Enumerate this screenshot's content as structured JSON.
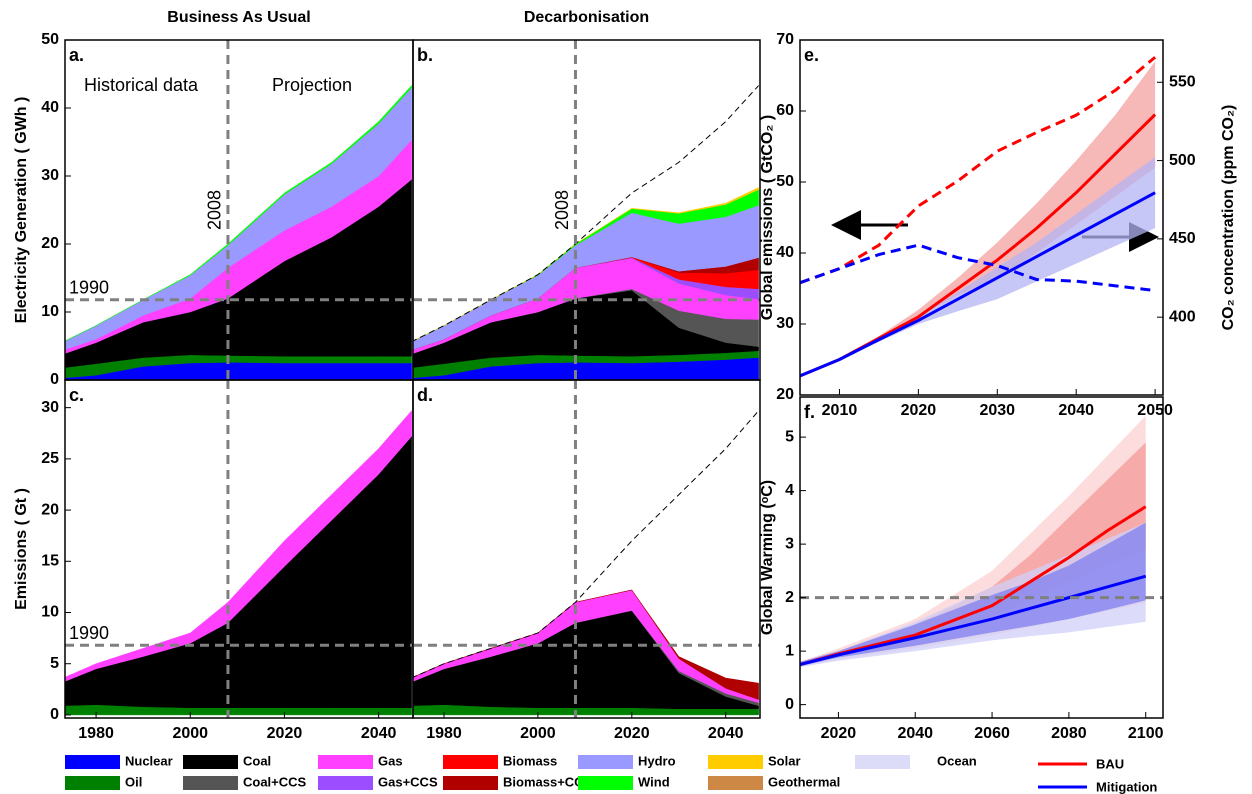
{
  "chart_data": [
    {
      "type": "area",
      "panel_label": "a.",
      "column_title": "Business As Usual",
      "ylabel": "Electricity Generation ( GWh )",
      "annotations": [
        "Historical data",
        "Projection"
      ],
      "x": [
        1973,
        1980,
        1990,
        2000,
        2008,
        2020,
        2030,
        2040,
        2047
      ],
      "xlim": [
        1973.4,
        2047.3
      ],
      "ylim": [
        0,
        50
      ],
      "yticks": [
        0,
        10,
        20,
        30,
        40,
        50
      ],
      "vline": 2008,
      "vline_label": true,
      "hline": {
        "value": 11.8,
        "label": "1990"
      },
      "series": [
        {
          "name": "Nuclear",
          "color": "#0000ff",
          "values": [
            0.3,
            0.7,
            2.0,
            2.5,
            2.6,
            2.5,
            2.5,
            2.5,
            2.5
          ]
        },
        {
          "name": "Oil",
          "color": "#008000",
          "values": [
            1.5,
            1.7,
            1.3,
            1.2,
            1.0,
            1.0,
            1.0,
            1.0,
            1.0
          ]
        },
        {
          "name": "Coal",
          "color": "#000000",
          "values": [
            2.0,
            3.1,
            5.2,
            6.3,
            8.4,
            14.0,
            17.5,
            22.0,
            26.0
          ]
        },
        {
          "name": "Gas",
          "color": "#ff40ff",
          "values": [
            0.6,
            0.5,
            1.0,
            2.0,
            4.5,
            4.5,
            4.5,
            4.5,
            5.8
          ]
        },
        {
          "name": "Hydro",
          "color": "#9999ff",
          "values": [
            1.2,
            2.0,
            2.3,
            3.4,
            3.3,
            5.3,
            6.3,
            7.7,
            7.7
          ]
        },
        {
          "name": "Wind",
          "color": "#00ff00",
          "values": [
            0,
            0,
            0,
            0.1,
            0.2,
            0.2,
            0.2,
            0.3,
            0.3
          ]
        }
      ]
    },
    {
      "type": "area",
      "panel_label": "b.",
      "column_title": "Decarbonisation",
      "x": [
        1973,
        1980,
        1990,
        2000,
        2008,
        2020,
        2030,
        2040,
        2047
      ],
      "xlim": [
        1973.4,
        2047.3
      ],
      "ylim": [
        0,
        50
      ],
      "vline": 2008,
      "vline_label": true,
      "hline": 11.8,
      "reference_line": [
        5.6,
        8.0,
        11.8,
        15.5,
        20.0,
        27.5,
        32.0,
        38.0,
        43.3
      ],
      "series": [
        {
          "name": "Nuclear",
          "color": "#0000ff",
          "values": [
            0.3,
            0.7,
            2.0,
            2.5,
            2.6,
            2.5,
            2.7,
            3.0,
            3.3
          ]
        },
        {
          "name": "Oil",
          "color": "#008000",
          "values": [
            1.5,
            1.7,
            1.3,
            1.2,
            1.0,
            1.0,
            1.0,
            1.0,
            1.0
          ]
        },
        {
          "name": "Coal",
          "color": "#000000",
          "values": [
            2.0,
            3.1,
            5.2,
            6.3,
            8.4,
            9.7,
            4.0,
            1.5,
            0.6
          ]
        },
        {
          "name": "Coal+CCS",
          "color": "#555555",
          "values": [
            0,
            0,
            0,
            0,
            0,
            0.2,
            2.5,
            3.5,
            4.0
          ]
        },
        {
          "name": "Gas",
          "color": "#ff40ff",
          "values": [
            0.6,
            0.5,
            1.0,
            2.0,
            4.5,
            4.5,
            4.0,
            3.5,
            3.0
          ]
        },
        {
          "name": "Gas+CCS",
          "color": "#9b4dff",
          "values": [
            0,
            0,
            0,
            0,
            0,
            0.1,
            0.6,
            1.2,
            1.5
          ]
        },
        {
          "name": "Biomass",
          "color": "#ff0000",
          "values": [
            0,
            0,
            0,
            0,
            0,
            0.1,
            1.0,
            2.0,
            2.8
          ]
        },
        {
          "name": "Biomass+CCS",
          "color": "#b00000",
          "values": [
            0,
            0,
            0,
            0,
            0,
            0,
            0.2,
            1.0,
            1.8
          ]
        },
        {
          "name": "Hydro",
          "color": "#9999ff",
          "values": [
            1.2,
            2.0,
            2.3,
            3.4,
            3.3,
            6.5,
            7.0,
            7.3,
            7.7
          ]
        },
        {
          "name": "Wind",
          "color": "#00ff00",
          "values": [
            0,
            0,
            0,
            0.1,
            0.2,
            0.6,
            1.5,
            1.8,
            2.3
          ]
        },
        {
          "name": "Solar",
          "color": "#ffcc00",
          "values": [
            0,
            0,
            0,
            0,
            0,
            0.05,
            0.1,
            0.2,
            0.3
          ]
        }
      ]
    },
    {
      "type": "area",
      "panel_label": "c.",
      "ylabel": "Emissions ( Gt )",
      "x": [
        1973,
        1980,
        1990,
        2000,
        2008,
        2020,
        2030,
        2040,
        2047
      ],
      "xlim": [
        1973.4,
        2047.3
      ],
      "xticks": [
        1980,
        2000,
        2020,
        2040
      ],
      "ylim": [
        -0.3,
        32.7
      ],
      "yticks": [
        0,
        5,
        10,
        15,
        20,
        25,
        30
      ],
      "vline": 2008,
      "hline": {
        "value": 6.8,
        "label": "1990"
      },
      "series": [
        {
          "name": "Oil",
          "color": "#008000",
          "values": [
            0.9,
            1.0,
            0.8,
            0.7,
            0.7,
            0.7,
            0.7,
            0.7,
            0.7
          ]
        },
        {
          "name": "Coal",
          "color": "#000000",
          "values": [
            2.3,
            3.5,
            4.9,
            6.3,
            8.3,
            13.8,
            18.3,
            22.8,
            26.5
          ]
        },
        {
          "name": "Gas",
          "color": "#ff40ff",
          "values": [
            0.4,
            0.5,
            0.8,
            1.0,
            2.0,
            2.5,
            2.5,
            2.5,
            2.5
          ]
        }
      ]
    },
    {
      "type": "area",
      "panel_label": "d.",
      "x": [
        1973,
        1980,
        1990,
        2000,
        2008,
        2020,
        2030,
        2040,
        2047
      ],
      "xlim": [
        1973.4,
        2047.3
      ],
      "xticks": [
        1980,
        2000,
        2020,
        2040
      ],
      "ylim": [
        -0.3,
        32.7
      ],
      "vline": 2008,
      "hline": 6.8,
      "reference_line": [
        3.6,
        5.0,
        6.5,
        8.0,
        11.0,
        17.0,
        21.5,
        26.0,
        29.7
      ],
      "series": [
        {
          "name": "Oil",
          "color": "#008000",
          "values": [
            0.9,
            1.0,
            0.8,
            0.7,
            0.7,
            0.7,
            0.6,
            0.6,
            0.6
          ]
        },
        {
          "name": "Coal",
          "color": "#000000",
          "values": [
            2.3,
            3.5,
            4.9,
            6.3,
            8.3,
            9.5,
            3.5,
            1.2,
            0.3
          ]
        },
        {
          "name": "Coal+CCS",
          "color": "#555555",
          "values": [
            0,
            0,
            0,
            0,
            0,
            0,
            0.2,
            0.3,
            0.3
          ]
        },
        {
          "name": "Gas",
          "color": "#ff40ff",
          "values": [
            0.4,
            0.5,
            0.8,
            1.0,
            2.0,
            2.0,
            1.2,
            0.5,
            0.3
          ]
        },
        {
          "name": "Biomass+CCS",
          "color": "#b00000",
          "values": [
            0,
            0,
            0,
            0,
            0,
            0,
            0.2,
            1.0,
            1.6
          ]
        }
      ]
    },
    {
      "type": "line",
      "panel_label": "e.",
      "ylabel": "Global emissions ( GtCO₂ )",
      "y2label": "CO₂ concentration (ppm CO₂)",
      "x": [
        2005,
        2010,
        2015,
        2020,
        2025,
        2030,
        2035,
        2040,
        2045,
        2050
      ],
      "xlim": [
        2005,
        2051
      ],
      "xticks": [
        2010,
        2020,
        2030,
        2040,
        2050
      ],
      "ylim": [
        20,
        70
      ],
      "yticks": [
        20,
        30,
        40,
        50,
        60,
        70
      ],
      "y2lim": [
        350.3,
        577
      ],
      "y2ticks": [
        400,
        450,
        500,
        550
      ],
      "bands": [
        {
          "color": "#f4a0a0",
          "lower": [
            22.7,
            25,
            27.8,
            31,
            34,
            36.5,
            40,
            44,
            48,
            52
          ],
          "upper": [
            22.7,
            25,
            28.3,
            32,
            36.5,
            41.5,
            47,
            53,
            59.5,
            67
          ]
        },
        {
          "color": "#b4b4f4",
          "lower": [
            22.7,
            25,
            27.5,
            30,
            31.8,
            33.5,
            36,
            38.5,
            41,
            43.5
          ],
          "upper": [
            22.7,
            25,
            28,
            31,
            34.5,
            38,
            41.5,
            45.5,
            49.5,
            53.5
          ]
        }
      ],
      "series": [
        {
          "color": "#ff0000",
          "values": [
            22.7,
            25,
            28,
            31,
            35,
            39,
            43.5,
            48.5,
            54,
            59.5
          ]
        },
        {
          "color": "#0000ff",
          "values": [
            22.7,
            25,
            27.8,
            30.5,
            33.5,
            36.5,
            39.5,
            42.5,
            45.5,
            48.5
          ]
        },
        {
          "color": "#ff0000",
          "axis": "y2",
          "dashed": true,
          "values": [
            422,
            431,
            446,
            471,
            487,
            506,
            518,
            529,
            545,
            566
          ]
        },
        {
          "color": "#0000ff",
          "axis": "y2",
          "dashed": true,
          "values": [
            422,
            431,
            440,
            446,
            438,
            433,
            424,
            423,
            420,
            417
          ]
        }
      ]
    },
    {
      "type": "line",
      "panel_label": "f.",
      "ylabel": "Global Warming (ᵒC)",
      "x": [
        2010,
        2020,
        2040,
        2060,
        2070,
        2080,
        2090,
        2100
      ],
      "xlim": [
        2010,
        2104.5
      ],
      "xticks": [
        2020,
        2040,
        2060,
        2080,
        2100
      ],
      "ylim": [
        -0.25,
        5.75
      ],
      "yticks": [
        0,
        1,
        2,
        3,
        4,
        5
      ],
      "hline": 2,
      "bands": [
        {
          "color": "#fbd0d0",
          "lower": [
            0.7,
            0.85,
            1.05,
            1.3,
            1.45,
            1.6,
            1.75,
            1.9
          ],
          "upper": [
            0.8,
            1.05,
            1.6,
            2.5,
            3.2,
            3.9,
            4.65,
            5.4
          ]
        },
        {
          "color": "#f49a9a",
          "lower": [
            0.72,
            0.9,
            1.2,
            1.65,
            1.95,
            2.3,
            2.6,
            2.9
          ],
          "upper": [
            0.8,
            1.0,
            1.5,
            2.2,
            2.8,
            3.5,
            4.2,
            4.9
          ]
        },
        {
          "color": "#d0d0f8",
          "lower": [
            0.7,
            0.82,
            1.0,
            1.2,
            1.28,
            1.35,
            1.45,
            1.55
          ],
          "upper": [
            0.8,
            1.0,
            1.55,
            2.2,
            2.5,
            2.8,
            3.1,
            3.4
          ]
        },
        {
          "color": "#7f7fef",
          "lower": [
            0.72,
            0.88,
            1.1,
            1.35,
            1.47,
            1.6,
            1.77,
            1.95
          ],
          "upper": [
            0.8,
            1.0,
            1.5,
            2.05,
            2.3,
            2.6,
            3.0,
            3.4
          ]
        }
      ],
      "series": [
        {
          "name": "BAU",
          "color": "#ff0000",
          "values": [
            0.75,
            0.95,
            1.3,
            1.85,
            2.3,
            2.75,
            3.25,
            3.7
          ]
        },
        {
          "name": "Mitigation",
          "color": "#0000ff",
          "values": [
            0.75,
            0.93,
            1.25,
            1.6,
            1.8,
            2.0,
            2.2,
            2.4
          ]
        }
      ]
    }
  ],
  "legend": [
    {
      "name": "Nuclear",
      "color": "#0000ff"
    },
    {
      "name": "Coal",
      "color": "#000000"
    },
    {
      "name": "Gas",
      "color": "#ff40ff"
    },
    {
      "name": "Biomass",
      "color": "#ff0000"
    },
    {
      "name": "Hydro",
      "color": "#9999ff"
    },
    {
      "name": "Solar",
      "color": "#ffcc00"
    },
    {
      "name": "Ocean",
      "color": "#dcdcf8"
    },
    {
      "name": "Oil",
      "color": "#008000"
    },
    {
      "name": "Coal+CCS",
      "color": "#555555"
    },
    {
      "name": "Gas+CCS",
      "color": "#9b4dff"
    },
    {
      "name": "Biomass+CCS",
      "color": "#b00000"
    },
    {
      "name": "Wind",
      "color": "#00ff00"
    },
    {
      "name": "Geothermal",
      "color": "#cc8844"
    }
  ]
}
